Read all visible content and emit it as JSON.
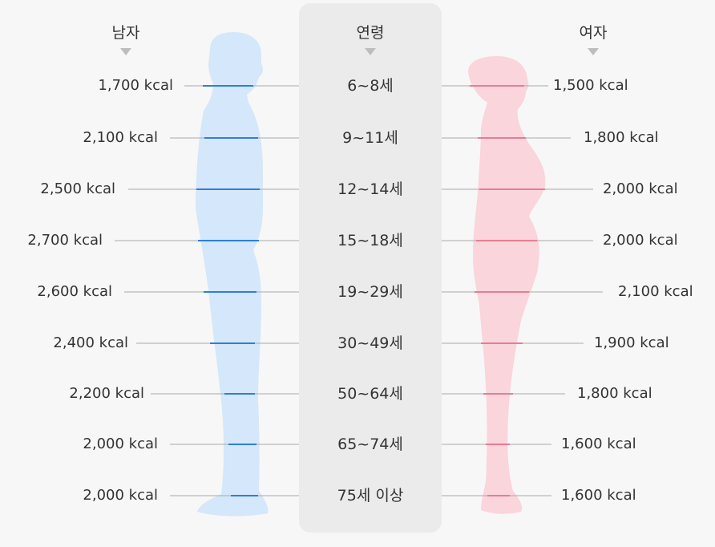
{
  "headers": {
    "male": "남자",
    "age": "연령",
    "female": "여자"
  },
  "rows": [
    {
      "age": "6~8세",
      "male": "1,700 kcal",
      "female": "1,500 kcal"
    },
    {
      "age": "9~11세",
      "male": "2,100 kcal",
      "female": "1,800 kcal"
    },
    {
      "age": "12~14세",
      "male": "2,500 kcal",
      "female": "2,000 kcal"
    },
    {
      "age": "15~18세",
      "male": "2,700 kcal",
      "female": "2,000 kcal"
    },
    {
      "age": "19~29세",
      "male": "2,600 kcal",
      "female": "2,100 kcal"
    },
    {
      "age": "30~49세",
      "male": "2,400 kcal",
      "female": "1,900 kcal"
    },
    {
      "age": "50~64세",
      "male": "2,200 kcal",
      "female": "1,800 kcal"
    },
    {
      "age": "65~74세",
      "male": "2,000 kcal",
      "female": "1,600 kcal"
    },
    {
      "age": "75세 이상",
      "male": "2,000 kcal",
      "female": "1,600 kcal"
    }
  ],
  "colors": {
    "male_silhouette": "#d5e7fa",
    "male_accent": "#2e7fd6",
    "female_silhouette": "#fad5dc",
    "female_accent": "#e87c94",
    "center_panel": "#ebebeb",
    "leader_line": "#a9a9a9",
    "marker": "#bdbdbd"
  },
  "icons": {
    "male_figure": "male-silhouette-icon",
    "female_figure": "female-silhouette-icon"
  }
}
